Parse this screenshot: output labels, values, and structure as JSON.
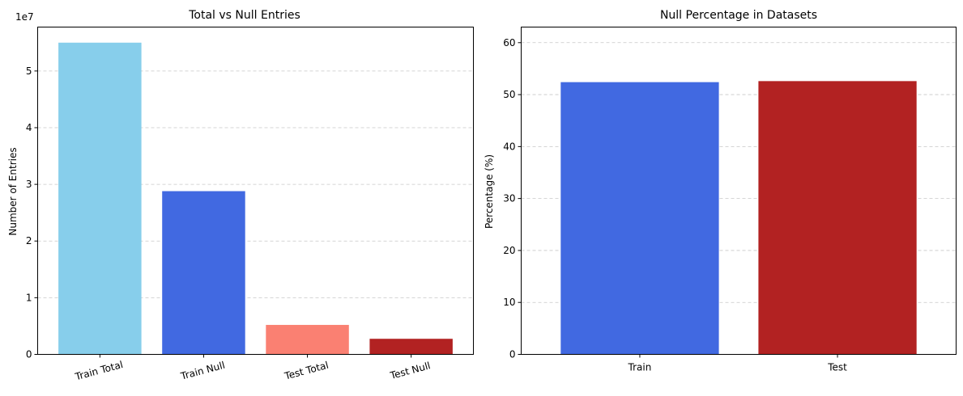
{
  "chart_data": [
    {
      "type": "bar",
      "title": "Total vs Null Entries",
      "xlabel": "",
      "ylabel": "Number of Entries",
      "y_offset_label": "1e7",
      "categories": [
        "Train Total",
        "Train Null",
        "Test Total",
        "Test Null"
      ],
      "values": [
        55000000,
        28800000,
        5200000,
        2750000
      ],
      "colors": [
        "#87CEEB",
        "#4169E1",
        "#FA8072",
        "#B22222"
      ],
      "ylim": [
        0,
        57750000
      ],
      "yticks": [
        0,
        10000000,
        20000000,
        30000000,
        40000000,
        50000000
      ],
      "ytick_labels": [
        "0",
        "1",
        "2",
        "3",
        "4",
        "5"
      ],
      "xtick_rotation": "rotated",
      "grid": "y-dashed"
    },
    {
      "type": "bar",
      "title": "Null Percentage in Datasets",
      "xlabel": "",
      "ylabel": "Percentage (%)",
      "categories": [
        "Train",
        "Test"
      ],
      "values": [
        52.4,
        52.6
      ],
      "colors": [
        "#4169E1",
        "#B22222"
      ],
      "ylim": [
        0,
        63
      ],
      "yticks": [
        0,
        10,
        20,
        30,
        40,
        50,
        60
      ],
      "ytick_labels": [
        "0",
        "10",
        "20",
        "30",
        "40",
        "50",
        "60"
      ],
      "grid": "y-dashed"
    }
  ]
}
